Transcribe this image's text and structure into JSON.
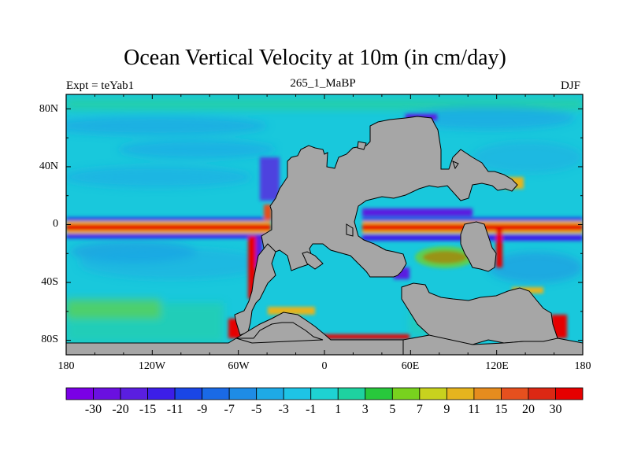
{
  "title": "Ocean Vertical Velocity at 10m (in cm/day)",
  "left_string": "Expt = teYab1",
  "center_string": "265_1_MaBP",
  "right_string": "DJF",
  "map": {
    "projection": "cylindrical-equidistant",
    "lon_range": [
      -180,
      180
    ],
    "lat_range": [
      -90,
      90
    ],
    "land_color": "#a6a6a6",
    "background_field_color": "#19c8dc",
    "x_ticks": [
      "180",
      "120W",
      "60W",
      "0",
      "60E",
      "120E",
      "180"
    ],
    "y_ticks": [
      "80N",
      "40N",
      "0",
      "40S",
      "80S"
    ]
  },
  "colorbar": {
    "labels": [
      "-30",
      "-20",
      "-15",
      "-11",
      "-9",
      "-7",
      "-5",
      "-3",
      "-1",
      "1",
      "3",
      "5",
      "7",
      "9",
      "11",
      "15",
      "20",
      "30"
    ],
    "colors": [
      "#7a00e6",
      "#6a10e0",
      "#5a1ee0",
      "#3c1ee8",
      "#1a46e6",
      "#1a6ae6",
      "#1e8ce6",
      "#1eaae6",
      "#1ec4e6",
      "#1ed2d2",
      "#1ed2a0",
      "#28c83c",
      "#78d21e",
      "#c8d21e",
      "#e6b41e",
      "#e68c1e",
      "#e6501e",
      "#dc2814",
      "#e60000"
    ]
  },
  "chart_data": {
    "type": "heatmap",
    "title": "Ocean Vertical Velocity at 10m (in cm/day)",
    "subtitle": "265_1_MaBP",
    "xlabel": "",
    "ylabel": "",
    "x_range": [
      -180,
      180
    ],
    "y_range": [
      -90,
      90
    ],
    "levels": [
      -30,
      -20,
      -15,
      -11,
      -9,
      -7,
      -5,
      -3,
      -1,
      1,
      3,
      5,
      7,
      9,
      11,
      15,
      20,
      30
    ],
    "season": "DJF"
  }
}
